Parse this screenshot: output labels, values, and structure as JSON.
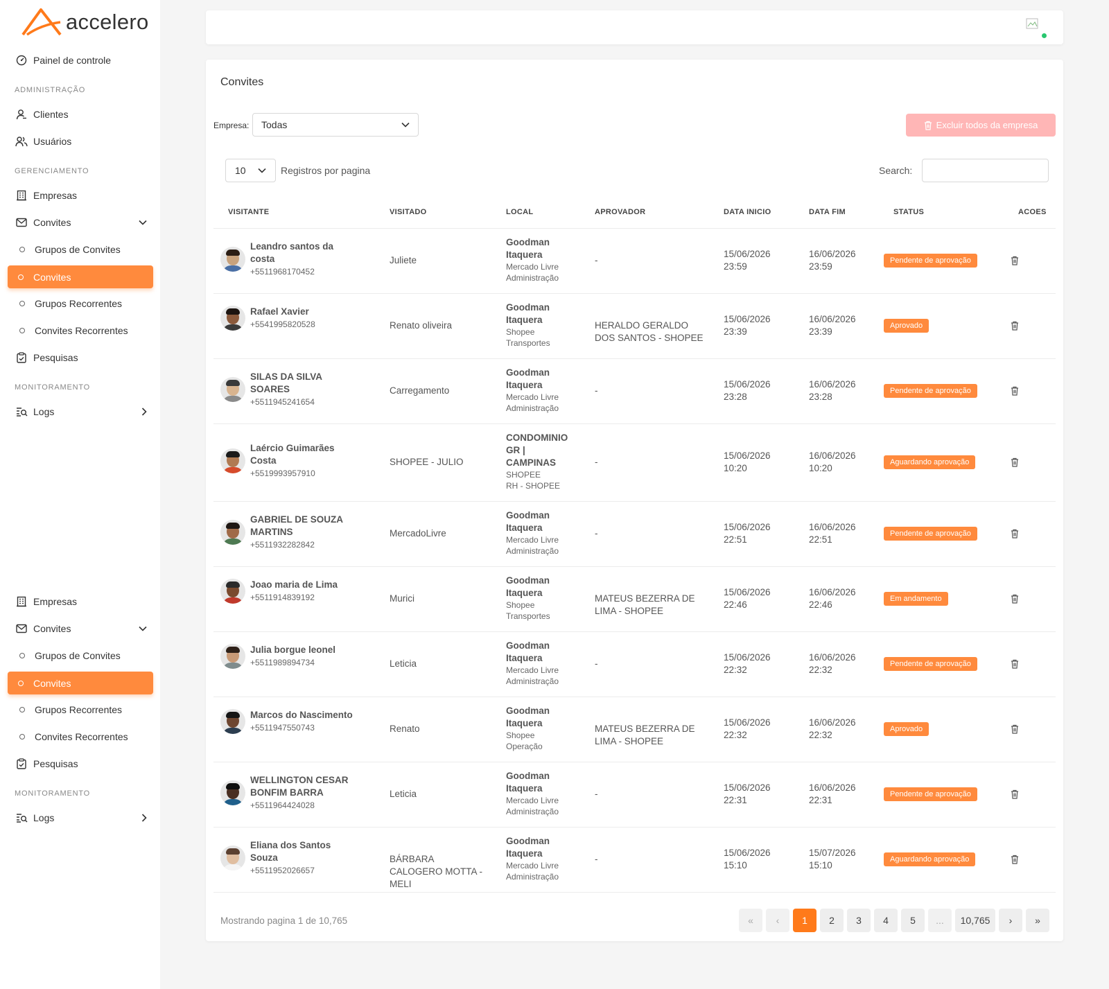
{
  "brand": {
    "name": "accelero"
  },
  "sidebar": {
    "dashboard": "Painel de controle",
    "sections": [
      {
        "label": "ADMINISTRAÇÃO"
      },
      {
        "label": "GERENCIAMENTO"
      },
      {
        "label": "MONITORAMENTO"
      }
    ],
    "items": {
      "clientes": "Clientes",
      "usuarios": "Usuários",
      "empresas": "Empresas",
      "convites": "Convites",
      "grupos_convites": "Grupos de Convites",
      "convites_sub": "Convites",
      "grupos_recorrentes": "Grupos Recorrentes",
      "convites_recorrentes": "Convites Recorrentes",
      "pesquisas": "Pesquisas",
      "logs": "Logs"
    }
  },
  "page": {
    "title": "Convites",
    "filter_label": "Empresa:",
    "filter_value": "Todas",
    "delete_all_label": "Excluir todos da empresa",
    "per_page_value": "10",
    "per_page_label": "Registros por pagina",
    "search_label": "Search:"
  },
  "table": {
    "headers": [
      "VISITANTE",
      "VISITADO",
      "LOCAL",
      "APROVADOR",
      "DATA INICIO",
      "DATA FIM",
      "STATUS",
      "ACOES"
    ],
    "rows": [
      {
        "name": "Leandro santos da costa",
        "phone": "+5511968170452",
        "visited": "Juliete",
        "local": "Goodman Itaquera",
        "local_sub1": "Mercado Livre",
        "local_sub2": "Administração",
        "approver": "-",
        "start": "15/06/2026 23:59",
        "end": "16/06/2026 23:59",
        "status": "Pendente de aprovação"
      },
      {
        "name": "Rafael Xavier",
        "phone": "+5541995820528",
        "visited": "Renato oliveira",
        "local": "Goodman Itaquera",
        "local_sub1": "Shopee",
        "local_sub2": "Transportes",
        "approver": "HERALDO GERALDO DOS SANTOS - SHOPEE",
        "start": "15/06/2026 23:39",
        "end": "16/06/2026 23:39",
        "status": "Aprovado"
      },
      {
        "name": "SILAS DA SILVA SOARES",
        "phone": "+5511945241654",
        "visited": "Carregamento",
        "local": "Goodman Itaquera",
        "local_sub1": "Mercado Livre",
        "local_sub2": "Administração",
        "approver": "-",
        "start": "15/06/2026 23:28",
        "end": "16/06/2026 23:28",
        "status": "Pendente de aprovação"
      },
      {
        "name": "Laércio Guimarães Costa",
        "phone": "+5519993957910",
        "visited": "SHOPEE - JULIO",
        "local": "CONDOMINIO GR | CAMPINAS",
        "local_sub1": "SHOPEE",
        "local_sub2": "RH - SHOPEE",
        "approver": "-",
        "start": "15/06/2026 10:20",
        "end": "16/06/2026 10:20",
        "status": "Aguardando aprovação"
      },
      {
        "name": "GABRIEL DE SOUZA MARTINS",
        "phone": "+5511932282842",
        "visited": "MercadoLivre",
        "local": "Goodman Itaquera",
        "local_sub1": "Mercado Livre",
        "local_sub2": "Administração",
        "approver": "-",
        "start": "15/06/2026 22:51",
        "end": "16/06/2026 22:51",
        "status": "Pendente de aprovação"
      },
      {
        "name": "Joao maria de Lima",
        "phone": "+5511914839192",
        "visited": "Murici",
        "local": "Goodman Itaquera",
        "local_sub1": "Shopee",
        "local_sub2": "Transportes",
        "approver": "MATEUS BEZERRA DE LIMA - SHOPEE",
        "start": "15/06/2026 22:46",
        "end": "16/06/2026 22:46",
        "status": "Em andamento"
      },
      {
        "name": "Julia borgue leonel",
        "phone": "+5511989894734",
        "visited": "Leticia",
        "local": "Goodman Itaquera",
        "local_sub1": "Mercado Livre",
        "local_sub2": "Administração",
        "approver": "-",
        "start": "15/06/2026 22:32",
        "end": "16/06/2026 22:32",
        "status": "Pendente de aprovação"
      },
      {
        "name": "Marcos do Nascimento",
        "phone": "+5511947550743",
        "visited": "Renato",
        "local": "Goodman Itaquera",
        "local_sub1": "Shopee",
        "local_sub2": "Operação",
        "approver": "MATEUS BEZERRA DE LIMA - SHOPEE",
        "start": "15/06/2026 22:32",
        "end": "16/06/2026 22:32",
        "status": "Aprovado"
      },
      {
        "name": "WELLINGTON CESAR BONFIM BARRA",
        "phone": "+5511964424028",
        "visited": "Leticia",
        "local": "Goodman Itaquera",
        "local_sub1": "Mercado Livre",
        "local_sub2": "Administração",
        "approver": "-",
        "start": "15/06/2026 22:31",
        "end": "16/06/2026 22:31",
        "status": "Pendente de aprovação"
      },
      {
        "name": "Eliana dos Santos Souza",
        "phone": "+5511952026657",
        "visited": "BÁRBARA CALOGERO MOTTA - MELI",
        "local": "Goodman Itaquera",
        "local_sub1": "Mercado Livre",
        "local_sub2": "Administração",
        "approver": "-",
        "start": "15/06/2026 15:10",
        "end": "15/07/2026 15:10",
        "status": "Aguardando aprovação"
      }
    ]
  },
  "pagination": {
    "info": "Mostrando pagina 1 de 10,765",
    "first": "«",
    "prev": "‹",
    "pages": [
      "1",
      "2",
      "3",
      "4",
      "5"
    ],
    "ellipsis": "...",
    "last_page": "10,765",
    "next": "›",
    "last": "»"
  },
  "colors": {
    "accent": "#ff8a3d",
    "danger_light": "#ffb6b6"
  }
}
